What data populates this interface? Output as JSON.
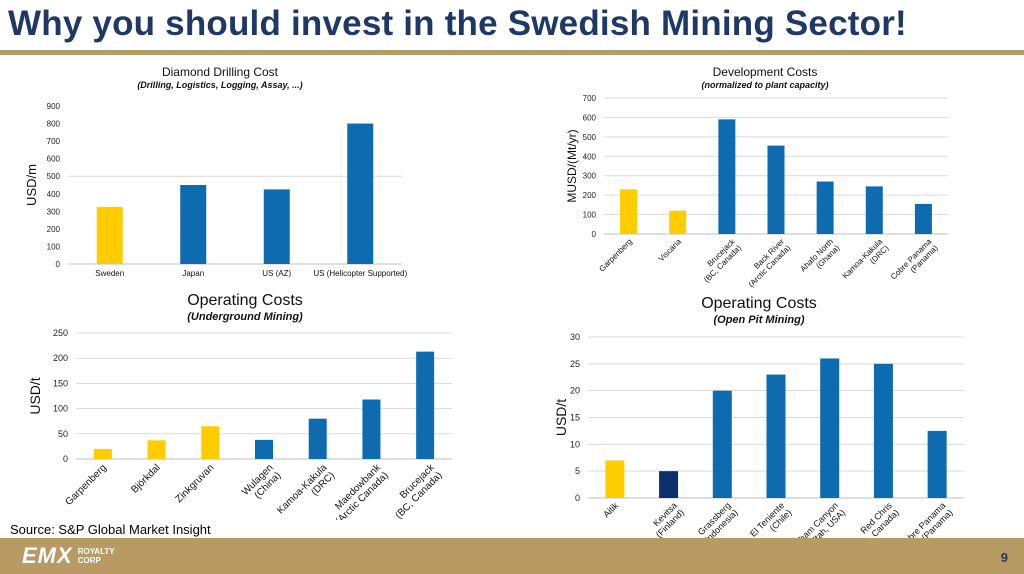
{
  "header": {
    "title": "Why you should invest in the Swedish Mining Sector!"
  },
  "footer": {
    "source": "Source: S&P Global Market Insight",
    "page_number": "9",
    "logo_main": "EMX",
    "logo_sub1": "ROYALTY",
    "logo_sub2": "CORP"
  },
  "colors": {
    "sweden": "#ffcc00",
    "other": "#0e6bb0",
    "dark": "#0b2f6b",
    "grid": "#d9d9d9"
  },
  "chart_data": [
    {
      "type": "bar",
      "title": "Diamond Drilling Cost",
      "subtitle": "(Drilling, Logistics, Logging, Assay, ...)",
      "ylabel": "USD/m",
      "ylim": [
        0,
        900
      ],
      "yticks": [
        0,
        100,
        200,
        300,
        400,
        500,
        600,
        700,
        800,
        900
      ],
      "categories": [
        "Sweden",
        "Japan",
        "US (AZ)",
        "US (Helicopter Supported)"
      ],
      "values": [
        325,
        450,
        425,
        800
      ],
      "colors": [
        "sweden",
        "other",
        "other",
        "other"
      ],
      "grid_lines": [
        500
      ],
      "label_rotate": false
    },
    {
      "type": "bar",
      "title": "Development Costs",
      "subtitle": "(normalized to plant capacity)",
      "ylabel": "MUSD/(Mt/yr)",
      "ylim": [
        0,
        700
      ],
      "yticks": [
        0,
        100,
        200,
        300,
        400,
        500,
        600,
        700
      ],
      "categories": [
        "Garpenberg",
        "Viscaria",
        "Brucejack\n(BC, Canada)",
        "Back River\n(Arctic Canada)",
        "Ahafo North\n(Ghana)",
        "Kamoa-Kakula\n(DRC)",
        "Cobre Panama\n(Panama)"
      ],
      "values": [
        230,
        120,
        590,
        455,
        270,
        245,
        155
      ],
      "colors": [
        "sweden",
        "sweden",
        "other",
        "other",
        "other",
        "other",
        "other"
      ],
      "grid_lines": [
        100,
        200,
        300,
        400,
        500,
        600,
        700
      ],
      "label_rotate": true
    },
    {
      "type": "bar",
      "title": "Operating Costs",
      "subtitle": "(Underground Mining)",
      "ylabel": "USD/t",
      "ylim": [
        0,
        250
      ],
      "yticks": [
        0,
        50,
        100,
        150,
        200,
        250
      ],
      "categories": [
        "Garpenberg",
        "Björkdal",
        "Zinkgruvan",
        "Wulagen\n(China)",
        "Kamoa-Kakula\n(DRC)",
        "Maedowbank\n(Arctic Canada)",
        "Brucejack\n(BC, Canada)"
      ],
      "values": [
        20,
        37,
        65,
        38,
        80,
        118,
        213
      ],
      "colors": [
        "sweden",
        "sweden",
        "sweden",
        "other",
        "other",
        "other",
        "other"
      ],
      "grid_lines": [
        50,
        100,
        150,
        200,
        250
      ],
      "label_rotate": true
    },
    {
      "type": "bar",
      "title": "Operating Costs",
      "subtitle": "(Open Pit Mining)",
      "ylabel": "USD/t",
      "ylim": [
        0,
        30
      ],
      "yticks": [
        0,
        5,
        10,
        15,
        20,
        25,
        30
      ],
      "categories": [
        "Aitik",
        "Kevitsa\n(Finland)",
        "Grassberg\n(Indonesia)",
        "El Teniente\n(Chile)",
        "Bingham Canyon\n(Utah, USA)",
        "Red Chris\n(BC, Canada)",
        "Cobre Panama\n(Panama)"
      ],
      "values": [
        7,
        5,
        20,
        23,
        26,
        25,
        12.5
      ],
      "colors": [
        "sweden",
        "dark",
        "other",
        "other",
        "other",
        "other",
        "other"
      ],
      "grid_lines": [
        5,
        10,
        15,
        20,
        25,
        30
      ],
      "label_rotate": true
    }
  ]
}
